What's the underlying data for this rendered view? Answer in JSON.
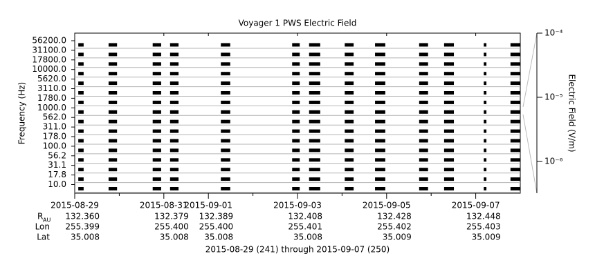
{
  "chart_data": {
    "type": "spectrogram",
    "title": "Voyager 1 PWS Electric Field",
    "ylabel": "Frequency (Hz)",
    "xlabel": "2015-08-29 (241) through 2015-09-07 (250)",
    "categories": [
      "56200.0",
      "31100.0",
      "17800.0",
      "10000.0",
      "5620.0",
      "3110.0",
      "1780.0",
      "1000.0",
      "562.0",
      "311.0",
      "178.0",
      "100.0",
      "56.2",
      "31.1",
      "17.8",
      "10.0"
    ],
    "xlim": [
      241,
      251
    ],
    "xticks": [
      {
        "value": 241,
        "label": "2015-08-29"
      },
      {
        "value": 243,
        "label": "2015-08-31"
      },
      {
        "value": 244,
        "label": "2015-09-01"
      },
      {
        "value": 246,
        "label": "2015-09-03"
      },
      {
        "value": 248,
        "label": "2015-09-05"
      },
      {
        "value": 250,
        "label": "2015-09-07"
      }
    ],
    "xminorticks": [
      242,
      245,
      247,
      249
    ],
    "color": "#000000",
    "grid": true,
    "segments": [
      [
        241.08,
        241.2
      ],
      [
        241.76,
        241.95
      ],
      [
        242.75,
        242.94
      ],
      [
        243.14,
        243.33
      ],
      [
        244.28,
        244.49
      ],
      [
        245.88,
        246.05
      ],
      [
        246.26,
        246.51
      ],
      [
        247.06,
        247.26
      ],
      [
        247.74,
        247.97
      ],
      [
        248.73,
        248.93
      ],
      [
        249.29,
        249.51
      ],
      [
        250.18,
        250.24
      ],
      [
        250.78,
        251.0
      ]
    ],
    "colorbar": {
      "label": "Electric Field (V/m)",
      "log": true,
      "lim": [
        3.2e-07,
        0.0001
      ],
      "ticks": [
        {
          "value": 0.0001,
          "label": "10⁻⁴"
        },
        {
          "value": 1e-05,
          "label": "10⁻⁵"
        },
        {
          "value": 1e-06,
          "label": "10⁻⁶"
        }
      ]
    },
    "ephemeris": [
      {
        "label": "R",
        "sub": "AU",
        "values": [
          "132.360",
          "132.379",
          "132.389",
          "132.408",
          "132.428",
          "132.448"
        ]
      },
      {
        "label": "Lon",
        "values": [
          "255.399",
          "255.400",
          "255.400",
          "255.401",
          "255.402",
          "255.403"
        ]
      },
      {
        "label": "Lat",
        "values": [
          "35.008",
          "35.008",
          "35.008",
          "35.008",
          "35.009",
          "35.009"
        ]
      }
    ]
  }
}
